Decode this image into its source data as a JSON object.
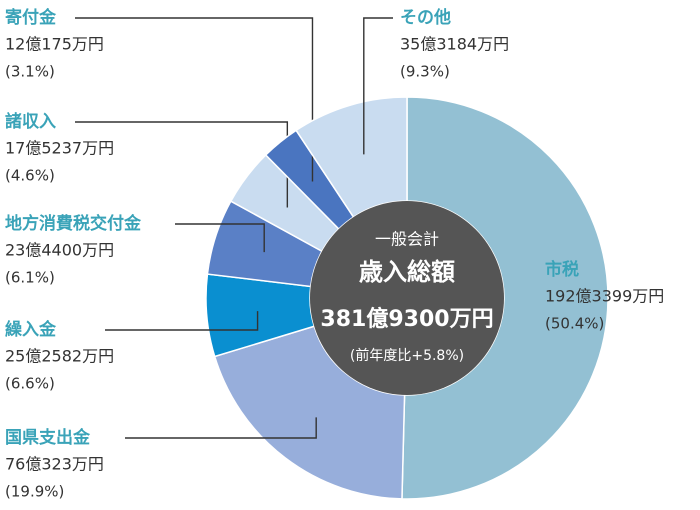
{
  "chart_data": {
    "type": "donut",
    "center_texts": [
      "一般会計",
      "歳入総額",
      "381億9300万円",
      "(前年度比+5.8%)"
    ],
    "categories": [
      "市税",
      "国県支出金",
      "繰入金",
      "地方消費税交付金",
      "諸収入",
      "寄付金",
      "その他"
    ],
    "amounts": [
      "192億3399万円",
      "76億323万円",
      "25億2582万円",
      "23億4400万円",
      "17億5237万円",
      "12億175万円",
      "35億3184万円"
    ],
    "values": [
      50.4,
      19.9,
      6.6,
      6.1,
      4.6,
      3.1,
      9.3
    ],
    "value_labels": [
      "(50.4%)",
      "(19.9%)",
      "(6.6%)",
      "(6.1%)",
      "(4.6%)",
      "(3.1%)",
      "(9.3%)"
    ],
    "colors": [
      "#93c0d3",
      "#97aedb",
      "#0a8fd0",
      "#5a80c6",
      "#c9dcf0",
      "#4a75c0",
      "#c9dcf0"
    ]
  }
}
